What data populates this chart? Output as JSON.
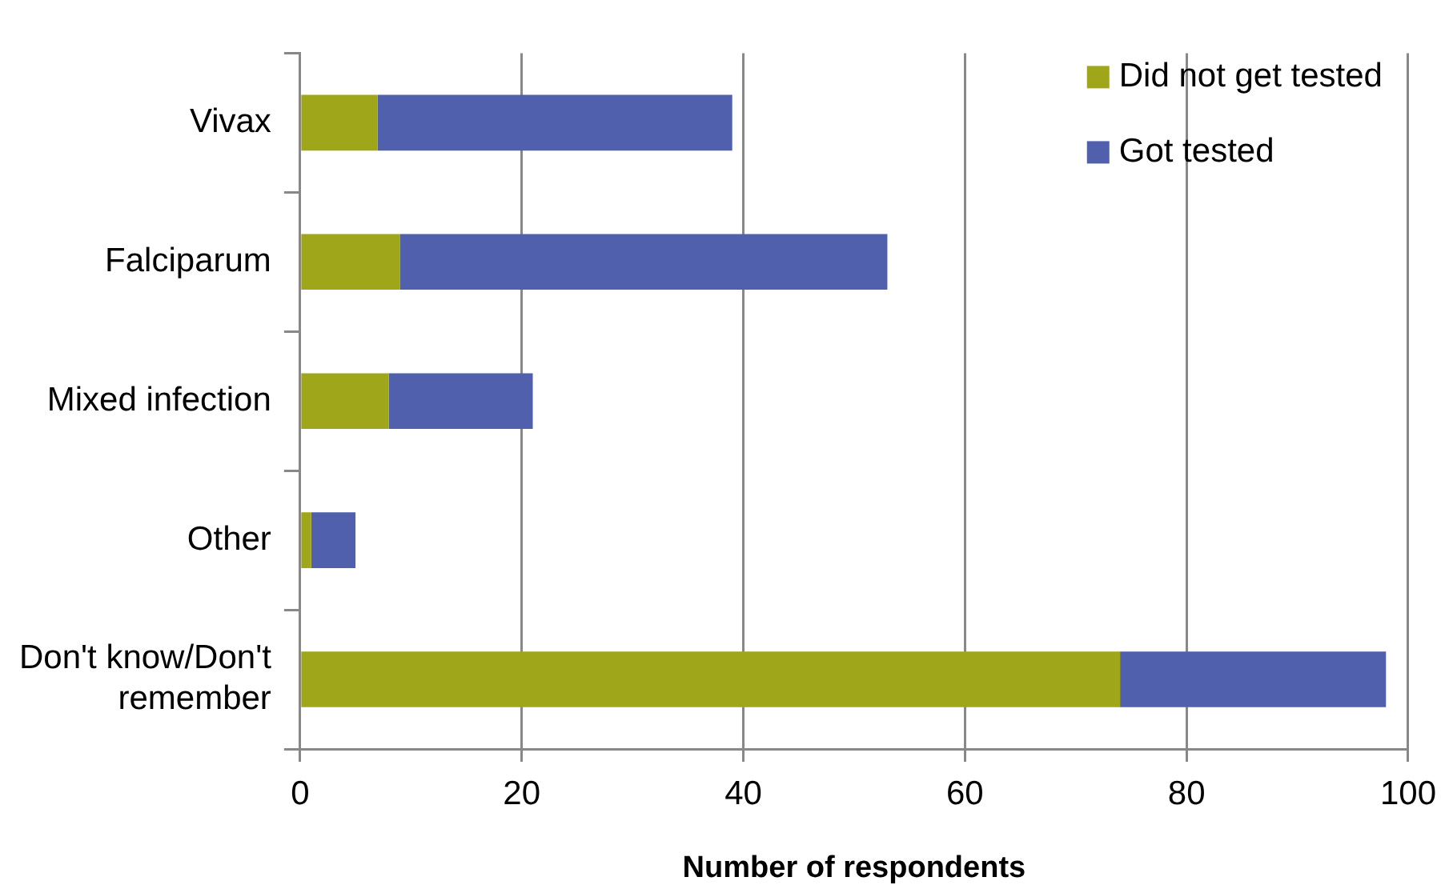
{
  "chart_data": {
    "type": "bar",
    "orientation": "horizontal",
    "stacked": true,
    "xlabel": "Number of respondents",
    "categories": [
      "Vivax",
      "Falciparum",
      "Mixed infection",
      "Other",
      "Don't know/Don't remember"
    ],
    "series": [
      {
        "name": "Did not get tested",
        "color": "#a0a61a",
        "values": [
          7,
          9,
          8,
          1,
          74
        ]
      },
      {
        "name": "Got tested",
        "color": "#5060ad",
        "values": [
          32,
          44,
          13,
          4,
          24
        ]
      }
    ],
    "xlim": [
      0,
      100
    ],
    "xticks": [
      0,
      20,
      40,
      60,
      80,
      100
    ],
    "grid": "x",
    "legend": "top right"
  }
}
